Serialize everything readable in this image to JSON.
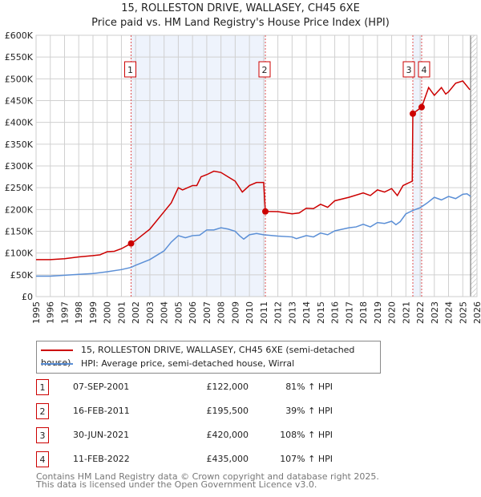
{
  "title_line1": "15, ROLLESTON DRIVE, WALLASEY, CH45 6XE",
  "title_line2": "Price paid vs. HM Land Registry's House Price Index (HPI)",
  "chart_data": {
    "type": "line",
    "title": "15, ROLLESTON DRIVE, WALLASEY, CH45 6XE — Price paid vs. HM Land Registry's House Price Index (HPI)",
    "xlim": [
      1995,
      2026
    ],
    "ylim": [
      0,
      600000
    ],
    "x_ticks": [
      "1995",
      "1996",
      "1997",
      "1998",
      "1999",
      "2000",
      "2001",
      "2002",
      "2003",
      "2004",
      "2005",
      "2006",
      "2007",
      "2008",
      "2009",
      "2010",
      "2011",
      "2012",
      "2013",
      "2014",
      "2015",
      "2016",
      "2017",
      "2018",
      "2019",
      "2020",
      "2021",
      "2022",
      "2023",
      "2024",
      "2025",
      "2026"
    ],
    "y_ticks": [
      {
        "v": 0,
        "label": "£0"
      },
      {
        "v": 50000,
        "label": "£50K"
      },
      {
        "v": 100000,
        "label": "£100K"
      },
      {
        "v": 150000,
        "label": "£150K"
      },
      {
        "v": 200000,
        "label": "£200K"
      },
      {
        "v": 250000,
        "label": "£250K"
      },
      {
        "v": 300000,
        "label": "£300K"
      },
      {
        "v": 350000,
        "label": "£350K"
      },
      {
        "v": 400000,
        "label": "£400K"
      },
      {
        "v": 450000,
        "label": "£450K"
      },
      {
        "v": 500000,
        "label": "£500K"
      },
      {
        "v": 550000,
        "label": "£550K"
      },
      {
        "v": 600000,
        "label": "£600K"
      }
    ],
    "grid": true,
    "series": [
      {
        "name": "15, ROLLESTON DRIVE, WALLASEY, CH45 6XE (semi-detached house)",
        "color": "#cc0000",
        "x": [
          1995,
          1996,
          1997,
          1998,
          1999,
          1999.5,
          2000,
          2000.5,
          2001,
          2001.68,
          2002,
          2003,
          2004,
          2004.5,
          2005,
          2005.3,
          2006,
          2006.3,
          2006.6,
          2007,
          2007.5,
          2008,
          2008.5,
          2009,
          2009.5,
          2010,
          2010.5,
          2011.0,
          2011.12,
          2012,
          2013,
          2013.5,
          2014,
          2014.5,
          2015,
          2015.5,
          2016,
          2017,
          2018,
          2018.5,
          2019,
          2019.5,
          2020,
          2020.4,
          2020.8,
          2021.45,
          2021.49,
          2022.11,
          2022.6,
          2023,
          2023.5,
          2023.8,
          2024,
          2024.5,
          2025,
          2025.5
        ],
        "values": [
          85000,
          85000,
          87000,
          91000,
          94000,
          96000,
          103000,
          104000,
          110000,
          122000,
          129000,
          155000,
          195000,
          215000,
          250000,
          245000,
          255000,
          255000,
          275000,
          280000,
          288000,
          285000,
          275000,
          265000,
          240000,
          255000,
          262000,
          262000,
          195500,
          195000,
          190000,
          192000,
          203000,
          202000,
          212000,
          205000,
          220000,
          228000,
          238000,
          232000,
          245000,
          240000,
          248000,
          232000,
          255000,
          265000,
          420000,
          435000,
          480000,
          462000,
          480000,
          465000,
          470000,
          490000,
          495000,
          475000
        ]
      },
      {
        "name": "HPI: Average price, semi-detached house, Wirral",
        "color": "#5b8fd6",
        "x": [
          1995,
          1996,
          1997,
          1998,
          1999,
          2000,
          2001,
          2001.68,
          2002,
          2003,
          2004,
          2004.5,
          2005,
          2005.5,
          2006,
          2006.5,
          2007,
          2007.5,
          2008,
          2008.5,
          2009,
          2009.3,
          2009.6,
          2010,
          2010.5,
          2011,
          2012,
          2013,
          2013.3,
          2014,
          2014.5,
          2015,
          2015.5,
          2016,
          2017,
          2017.5,
          2018,
          2018.5,
          2019,
          2019.5,
          2020,
          2020.3,
          2020.6,
          2021,
          2021.5,
          2022,
          2022.5,
          2023,
          2023.5,
          2024,
          2024.5,
          2025,
          2025.3,
          2025.55
        ],
        "values": [
          47000,
          47000,
          49000,
          51000,
          53000,
          57000,
          62000,
          67000,
          72000,
          85000,
          105000,
          125000,
          140000,
          135000,
          140000,
          141000,
          153000,
          153000,
          158000,
          155000,
          150000,
          140000,
          132000,
          142000,
          145000,
          142000,
          139000,
          137000,
          133000,
          140000,
          137000,
          146000,
          142000,
          151000,
          158000,
          160000,
          166000,
          160000,
          170000,
          168000,
          173000,
          165000,
          172000,
          190000,
          198000,
          204000,
          215000,
          228000,
          222000,
          230000,
          225000,
          235000,
          236000,
          230000
        ]
      }
    ],
    "sales": [
      {
        "n": "1",
        "x": 2001.68,
        "value": 122000
      },
      {
        "n": "2",
        "x": 2011.12,
        "value": 195500
      },
      {
        "n": "3",
        "x": 2021.49,
        "value": 420000
      },
      {
        "n": "4",
        "x": 2022.11,
        "value": 435000
      }
    ],
    "shaded_ranges": [
      [
        2001.68,
        2011.12
      ],
      [
        2021.49,
        2022.11
      ]
    ],
    "data_end": 2025.55,
    "legend_placement": "below"
  },
  "legend": [
    {
      "label": "15, ROLLESTON DRIVE, WALLASEY, CH45 6XE (semi-detached house)",
      "color": "#cc0000"
    },
    {
      "label": "HPI: Average price, semi-detached house, Wirral",
      "color": "#5b8fd6"
    }
  ],
  "table": [
    {
      "n": "1",
      "date": "07-SEP-2001",
      "price": "£122,000",
      "hpi": "81% ↑ HPI"
    },
    {
      "n": "2",
      "date": "16-FEB-2011",
      "price": "£195,500",
      "hpi": "39% ↑ HPI"
    },
    {
      "n": "3",
      "date": "30-JUN-2021",
      "price": "£420,000",
      "hpi": "108% ↑ HPI"
    },
    {
      "n": "4",
      "date": "11-FEB-2022",
      "price": "£435,000",
      "hpi": "107% ↑ HPI"
    }
  ],
  "footer_line1": "Contains HM Land Registry data © Crown copyright and database right 2025.",
  "footer_line2": "This data is licensed under the Open Government Licence v3.0."
}
